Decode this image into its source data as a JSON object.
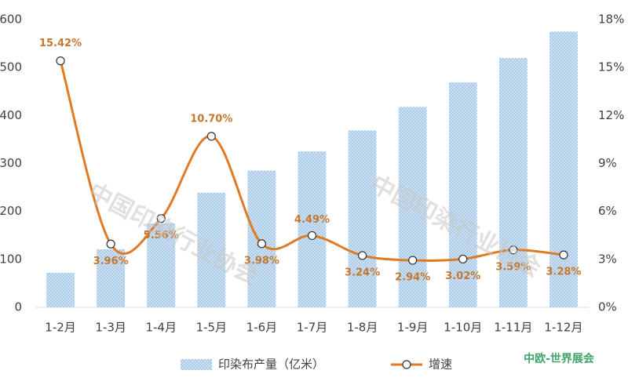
{
  "chart_data": {
    "type": "bar-line",
    "categories": [
      "1-2月",
      "1-3月",
      "1-4月",
      "1-5月",
      "1-6月",
      "1-7月",
      "1-8月",
      "1-9月",
      "1-10月",
      "1-11月",
      "1-12月"
    ],
    "series": [
      {
        "name": "印染布产量（亿米）",
        "type": "bar",
        "color": "#9dc3e6",
        "values": [
          72,
          121,
          175,
          239,
          285,
          325,
          369,
          418,
          469,
          520,
          575
        ]
      },
      {
        "name": "增速",
        "type": "line",
        "axis": "y2",
        "color": "#e07b24",
        "values": [
          15.42,
          3.96,
          5.56,
          10.7,
          3.98,
          4.49,
          3.24,
          2.94,
          3.02,
          3.59,
          3.28
        ],
        "value_labels": [
          "15.42%",
          "3.96%",
          "5.56%",
          "10.70%",
          "3.98%",
          "4.49%",
          "3.24%",
          "2.94%",
          "3.02%",
          "3.59%",
          "3.28%"
        ]
      }
    ],
    "ylim": [
      0,
      600
    ],
    "yticks": [
      0,
      100,
      200,
      300,
      400,
      500,
      600
    ],
    "y2lim": [
      0,
      18
    ],
    "y2ticks": [
      {
        "value": 0,
        "label": "0%"
      },
      {
        "value": 3,
        "label": "3%"
      },
      {
        "value": 6,
        "label": "6%"
      },
      {
        "value": 9,
        "label": "9%"
      },
      {
        "value": 12,
        "label": "12%"
      },
      {
        "value": 15,
        "label": "15%"
      },
      {
        "value": 18,
        "label": "18%"
      }
    ],
    "legend": "bottom",
    "watermark": "中国印染行业协会",
    "logo": "中欧-世界展会"
  }
}
